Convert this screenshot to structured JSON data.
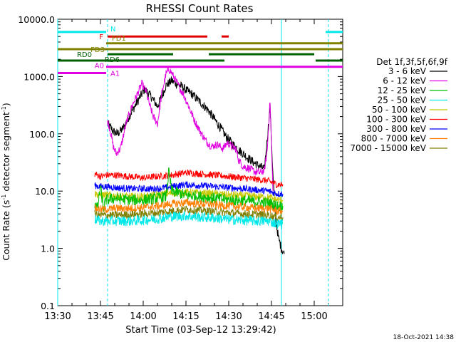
{
  "chart_data": {
    "type": "line",
    "title": "RHESSI Count Rates",
    "xlabel": "Start Time (03-Sep-12 13:29:42)",
    "ylabel_main": "Count Rate (s",
    "ylabel_sup": "-1",
    "ylabel_rest": " detector segment",
    "ylabel_sup2": "-1",
    "ylabel_end": ")",
    "x_scale": "time",
    "x_range_minutes": [
      0,
      100
    ],
    "x_ticks": [
      {
        "label": "13:30",
        "t": 0
      },
      {
        "label": "13:45",
        "t": 15
      },
      {
        "label": "14:00",
        "t": 30
      },
      {
        "label": "14:15",
        "t": 45
      },
      {
        "label": "14:30",
        "t": 60
      },
      {
        "label": "14:45",
        "t": 75
      },
      {
        "label": "15:00",
        "t": 90
      }
    ],
    "y_scale": "log",
    "ylim": [
      0.1,
      10000
    ],
    "y_ticks": [
      "10000.0",
      "1000.0",
      "100.0",
      "10.0",
      "1.0",
      "0.1"
    ],
    "timestamp": "18-Oct-2021 14:38",
    "legend": {
      "title": "Det 1f,3f,5f,6f,9f",
      "placement": "right",
      "entries": [
        {
          "label": "3 - 6 keV",
          "color": "#000000"
        },
        {
          "label": "6 - 12 keV",
          "color": "#e000e0"
        },
        {
          "label": "12 - 25 keV",
          "color": "#00c000"
        },
        {
          "label": "25 - 50 keV",
          "color": "#00e8e8"
        },
        {
          "label": "50 - 100 keV",
          "color": "#c8c800"
        },
        {
          "label": "100 - 300 keV",
          "color": "#ff0000"
        },
        {
          "label": "300 - 800 keV",
          "color": "#0000ff"
        },
        {
          "label": "800 - 7000 keV",
          "color": "#ff8000"
        },
        {
          "label": "7000 - 15000 keV",
          "color": "#808000"
        }
      ]
    },
    "flag_bars": [
      {
        "label": "N",
        "color": "#00e8e8",
        "y": 6000,
        "spans": [
          [
            0,
            17
          ],
          [
            94,
            100
          ]
        ]
      },
      {
        "label": "F",
        "color": "#e00000",
        "y": 5000,
        "spans": [
          [
            17.5,
            52.5
          ],
          [
            57.5,
            60
          ]
        ]
      },
      {
        "label": "FD1",
        "color": "#808000",
        "y": 3800,
        "spans": [
          [
            17,
            100
          ]
        ]
      },
      {
        "label": "FD3",
        "color": "#808000",
        "y": 3000,
        "spans": [
          [
            0,
            17
          ],
          [
            17,
            100
          ]
        ]
      },
      {
        "label": "RD0",
        "color": "#006000",
        "y": 2450,
        "spans": [
          [
            17.5,
            40.5
          ],
          [
            53,
            90
          ]
        ]
      },
      {
        "label": "RD6",
        "color": "#006000",
        "y": 1900,
        "spans": [
          [
            0,
            58.5
          ],
          [
            90.5,
            100
          ]
        ]
      },
      {
        "label": "A0",
        "color": "#e000e0",
        "y": 1480,
        "spans": [
          [
            17,
            100
          ]
        ]
      },
      {
        "label": "A1",
        "color": "#e000e0",
        "y": 1150,
        "spans": [
          [
            0,
            17
          ]
        ]
      }
    ],
    "vertical_markers": [
      {
        "t": 0,
        "style": "solid",
        "color": "#00e8e8"
      },
      {
        "t": 17.5,
        "style": "dashed",
        "color": "#00e8e8"
      },
      {
        "t": 78.5,
        "style": "solid",
        "color": "#00e8e8"
      },
      {
        "t": 95,
        "style": "dashed",
        "color": "#00e8e8"
      }
    ],
    "series": [
      {
        "name": "3 - 6 keV",
        "color": "#000000",
        "noise": 0.08,
        "points": [
          [
            17.5,
            150
          ],
          [
            18.5,
            130
          ],
          [
            19.5,
            110
          ],
          [
            21,
            100
          ],
          [
            23,
            125
          ],
          [
            25,
            200
          ],
          [
            27,
            300
          ],
          [
            29,
            450
          ],
          [
            30.5,
            600
          ],
          [
            32,
            500
          ],
          [
            33.5,
            400
          ],
          [
            35,
            300
          ],
          [
            36.5,
            450
          ],
          [
            38,
            700
          ],
          [
            40,
            850
          ],
          [
            41,
            780
          ],
          [
            43,
            700
          ],
          [
            45,
            580
          ],
          [
            47,
            500
          ],
          [
            49,
            400
          ],
          [
            51,
            320
          ],
          [
            53,
            250
          ],
          [
            55,
            180
          ],
          [
            57,
            130
          ],
          [
            59,
            90
          ],
          [
            61,
            70
          ],
          [
            63,
            55
          ],
          [
            65,
            45
          ],
          [
            67,
            37
          ],
          [
            69,
            31
          ],
          [
            71,
            27
          ],
          [
            72.5,
            24
          ],
          [
            73.5,
            80
          ],
          [
            74.5,
            300
          ],
          [
            75.5,
            20
          ],
          [
            76.5,
            3
          ],
          [
            77.5,
            1.5
          ],
          [
            78.5,
            1.0
          ],
          [
            79.5,
            0.8
          ]
        ]
      },
      {
        "name": "6 - 12 keV",
        "color": "#e000e0",
        "noise": 0.07,
        "points": [
          [
            17.5,
            170
          ],
          [
            18.5,
            110
          ],
          [
            19.5,
            60
          ],
          [
            20.5,
            45
          ],
          [
            22,
            55
          ],
          [
            24,
            150
          ],
          [
            26,
            300
          ],
          [
            28,
            500
          ],
          [
            29.5,
            750
          ],
          [
            31,
            550
          ],
          [
            32,
            350
          ],
          [
            33.5,
            200
          ],
          [
            35,
            150
          ],
          [
            36.5,
            500
          ],
          [
            38,
            1100
          ],
          [
            39,
            1350
          ],
          [
            40,
            1150
          ],
          [
            42,
            750
          ],
          [
            44,
            500
          ],
          [
            46,
            300
          ],
          [
            48,
            170
          ],
          [
            50,
            110
          ],
          [
            52,
            75
          ],
          [
            54,
            60
          ],
          [
            56,
            65
          ],
          [
            58,
            55
          ],
          [
            59.5,
            70
          ],
          [
            61,
            60
          ],
          [
            62.5,
            55
          ],
          [
            63.5,
            35
          ],
          [
            65,
            27
          ],
          [
            67,
            25
          ],
          [
            69,
            22
          ],
          [
            71,
            21
          ],
          [
            72.5,
            23
          ],
          [
            73.5,
            50
          ],
          [
            74.5,
            380
          ],
          [
            75.5,
            10
          ]
        ]
      },
      {
        "name": "100 - 300 keV",
        "color": "#ff0000",
        "noise": 0.06,
        "points": [
          [
            13,
            20
          ],
          [
            15,
            18
          ],
          [
            17,
            19
          ],
          [
            20,
            19
          ],
          [
            25,
            18
          ],
          [
            30,
            17
          ],
          [
            35,
            18
          ],
          [
            40,
            19
          ],
          [
            45,
            21
          ],
          [
            50,
            20
          ],
          [
            55,
            19
          ],
          [
            60,
            18
          ],
          [
            65,
            17
          ],
          [
            70,
            16
          ],
          [
            74,
            15
          ],
          [
            77,
            13
          ],
          [
            79,
            13
          ]
        ]
      },
      {
        "name": "300 - 800 keV",
        "color": "#0000ff",
        "noise": 0.06,
        "points": [
          [
            13,
            12.5
          ],
          [
            15,
            12
          ],
          [
            17,
            12
          ],
          [
            20,
            11.5
          ],
          [
            25,
            11
          ],
          [
            30,
            11
          ],
          [
            35,
            11
          ],
          [
            40,
            12
          ],
          [
            45,
            13
          ],
          [
            50,
            12.5
          ],
          [
            55,
            12
          ],
          [
            60,
            11.5
          ],
          [
            65,
            11
          ],
          [
            70,
            10.5
          ],
          [
            74,
            10
          ],
          [
            77,
            9
          ],
          [
            79,
            9
          ]
        ]
      },
      {
        "name": "50 - 100 keV",
        "color": "#c8c800",
        "noise": 0.07,
        "points": [
          [
            13,
            9
          ],
          [
            15,
            8.5
          ],
          [
            17,
            8.5
          ],
          [
            20,
            8.3
          ],
          [
            25,
            8
          ],
          [
            30,
            8
          ],
          [
            35,
            8.5
          ],
          [
            40,
            9.2
          ],
          [
            45,
            9.5
          ],
          [
            50,
            9.2
          ],
          [
            55,
            9
          ],
          [
            60,
            8.5
          ],
          [
            65,
            8.3
          ],
          [
            70,
            8
          ],
          [
            74,
            7.8
          ],
          [
            77,
            7
          ],
          [
            79,
            7
          ]
        ]
      },
      {
        "name": "12 - 25 keV",
        "color": "#00c000",
        "noise": 0.1,
        "points": [
          [
            13,
            6
          ],
          [
            14,
            5
          ],
          [
            15,
            12
          ],
          [
            16,
            5
          ],
          [
            17,
            7
          ],
          [
            20,
            7.5
          ],
          [
            25,
            7
          ],
          [
            30,
            7
          ],
          [
            35,
            7.5
          ],
          [
            38,
            8
          ],
          [
            39,
            22
          ],
          [
            40,
            10
          ],
          [
            45,
            8.5
          ],
          [
            50,
            8
          ],
          [
            55,
            7.5
          ],
          [
            60,
            7
          ],
          [
            65,
            6.8
          ],
          [
            70,
            6.5
          ],
          [
            74,
            6.2
          ],
          [
            77,
            5.5
          ],
          [
            79,
            5.5
          ]
        ]
      },
      {
        "name": "800 - 7000 keV",
        "color": "#ff8000",
        "noise": 0.07,
        "points": [
          [
            13,
            5
          ],
          [
            15,
            4.8
          ],
          [
            17,
            4.8
          ],
          [
            20,
            5
          ],
          [
            25,
            5
          ],
          [
            30,
            5.2
          ],
          [
            35,
            5.5
          ],
          [
            40,
            6
          ],
          [
            45,
            6.3
          ],
          [
            50,
            6
          ],
          [
            55,
            5.8
          ],
          [
            60,
            5.5
          ],
          [
            65,
            5.3
          ],
          [
            70,
            5
          ],
          [
            74,
            5
          ],
          [
            77,
            4.5
          ],
          [
            79,
            4.5
          ]
        ]
      },
      {
        "name": "7000 - 15000 keV",
        "color": "#808000",
        "noise": 0.07,
        "points": [
          [
            13,
            4
          ],
          [
            15,
            3.8
          ],
          [
            17,
            3.8
          ],
          [
            20,
            3.8
          ],
          [
            25,
            3.9
          ],
          [
            30,
            4
          ],
          [
            35,
            4.2
          ],
          [
            40,
            4.5
          ],
          [
            45,
            4.8
          ],
          [
            50,
            4.6
          ],
          [
            55,
            4.4
          ],
          [
            60,
            4.2
          ],
          [
            65,
            4
          ],
          [
            70,
            3.9
          ],
          [
            74,
            3.8
          ],
          [
            77,
            3.5
          ],
          [
            79,
            3.5
          ]
        ]
      },
      {
        "name": "25 - 50 keV",
        "color": "#00e8e8",
        "noise": 0.09,
        "points": [
          [
            13,
            3.2
          ],
          [
            15,
            3
          ],
          [
            17,
            3
          ],
          [
            20,
            3
          ],
          [
            25,
            3
          ],
          [
            30,
            3.1
          ],
          [
            35,
            3.3
          ],
          [
            40,
            3.6
          ],
          [
            45,
            3.7
          ],
          [
            50,
            3.5
          ],
          [
            55,
            3.4
          ],
          [
            60,
            3.2
          ],
          [
            65,
            3.1
          ],
          [
            70,
            3
          ],
          [
            74,
            3
          ],
          [
            77,
            2.7
          ],
          [
            79,
            2.7
          ]
        ]
      }
    ]
  }
}
